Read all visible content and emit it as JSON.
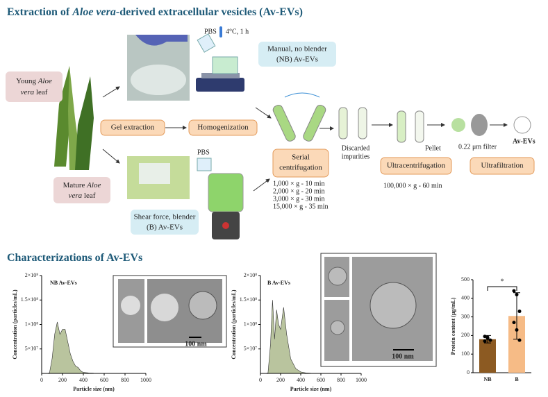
{
  "header": {
    "title": [
      "Extraction of ",
      "Aloe vera",
      "-derived extracellular vesicles (Av-EVs)"
    ],
    "section2": "Characterizations of Av-EVs"
  },
  "workflow": {
    "temperature": "4°C, 1 h",
    "pbs_top": "PBS",
    "pbs_bottom": "PBS",
    "nb_box": [
      "Manual, no blender",
      "(NB) Av-EVs"
    ],
    "b_box": [
      "Shear force, blender",
      "(B) Av-EVs"
    ],
    "young_leaf": [
      "Young ",
      "Aloe",
      "vera",
      " leaf"
    ],
    "mature_leaf": [
      "Mature ",
      "Aloe",
      "vera",
      " leaf"
    ],
    "gel_extraction": "Gel extraction",
    "homogenization": "Homogenization",
    "serial_centrifugation": [
      "Serial",
      "centrifugation"
    ],
    "discarded": [
      "Discarded",
      "impurities"
    ],
    "pellet": "Pellet",
    "ultracentrifugation": "Ultracentrifugation",
    "filter": "0.22 μm filter",
    "ultrafiltration": "Ultrafiltration",
    "product": "Av-EVs",
    "uc_condition": "100,000 × g - 60 min",
    "centrifugation_steps": [
      "1,000 × g - 10 min",
      "2,000 × g - 20 min",
      "3,000 × g - 30 min",
      "15,000 × g - 35 min"
    ]
  },
  "chart_data": [
    {
      "type": "area",
      "title": "NB Av-EVs",
      "x_label": "Particle size (nm)",
      "y_label": "Concentration (particles/mL)",
      "color": "#b9c49e",
      "annotations": [
        "100 nm"
      ],
      "x": [
        0,
        25,
        50,
        75,
        100,
        125,
        150,
        175,
        200,
        225,
        250,
        275,
        300,
        325,
        350,
        375,
        400,
        450,
        500,
        600,
        700,
        800,
        1000
      ],
      "values": [
        0,
        0,
        0,
        1000000,
        30000000,
        80000000,
        105000000,
        80000000,
        90000000,
        90000000,
        65000000,
        40000000,
        25000000,
        15000000,
        12000000,
        5000000,
        2000000,
        1000000,
        500000,
        200000,
        100000,
        0,
        0
      ],
      "xlim": [
        0,
        1000
      ],
      "xticks": [
        0,
        200,
        400,
        600,
        800,
        1000
      ],
      "ylim": [
        0,
        200000000
      ],
      "yticks": [
        {
          "value": 50000000,
          "label": "5×10⁷"
        },
        {
          "value": 100000000,
          "label": "1×10⁸"
        },
        {
          "value": 150000000,
          "label": "1.5×10⁸"
        },
        {
          "value": 200000000,
          "label": "2×10⁸"
        }
      ]
    },
    {
      "type": "area",
      "title": "B Av-EVs",
      "x_label": "Particle size (nm)",
      "y_label": "Concentration (particles/mL)",
      "color": "#b9c49e",
      "annotations": [
        "100 nm"
      ],
      "x": [
        0,
        50,
        75,
        100,
        120,
        140,
        160,
        180,
        200,
        230,
        260,
        300,
        350,
        400,
        450,
        500,
        600,
        800,
        1000
      ],
      "values": [
        0,
        0,
        1000000,
        60000000,
        150000000,
        70000000,
        130000000,
        100000000,
        90000000,
        135000000,
        80000000,
        30000000,
        10000000,
        3000000,
        1000000,
        500000,
        0,
        0,
        0
      ],
      "xlim": [
        0,
        1000
      ],
      "xticks": [
        0,
        200,
        400,
        600,
        800,
        1000
      ],
      "ylim": [
        0,
        200000000
      ],
      "yticks": [
        {
          "value": 50000000,
          "label": "5×10⁷"
        },
        {
          "value": 100000000,
          "label": "1×10⁸"
        },
        {
          "value": 150000000,
          "label": "1.5×10⁸"
        },
        {
          "value": 200000000,
          "label": "2×10⁸"
        }
      ]
    },
    {
      "type": "bar",
      "y_label": "Protein content (µg/mL)",
      "categories": [
        "NB",
        "B"
      ],
      "values": [
        180,
        305
      ],
      "errors": [
        20,
        125
      ],
      "colors": [
        "#8c5a22",
        "#f6bb86"
      ],
      "points": [
        [
          195,
          190,
          175,
          170,
          185
        ],
        [
          440,
          420,
          330,
          270,
          230,
          175
        ]
      ],
      "ylim": [
        0,
        500
      ],
      "yticks": [
        0,
        100,
        200,
        300,
        400,
        500
      ],
      "annotations": [
        "*"
      ]
    }
  ]
}
